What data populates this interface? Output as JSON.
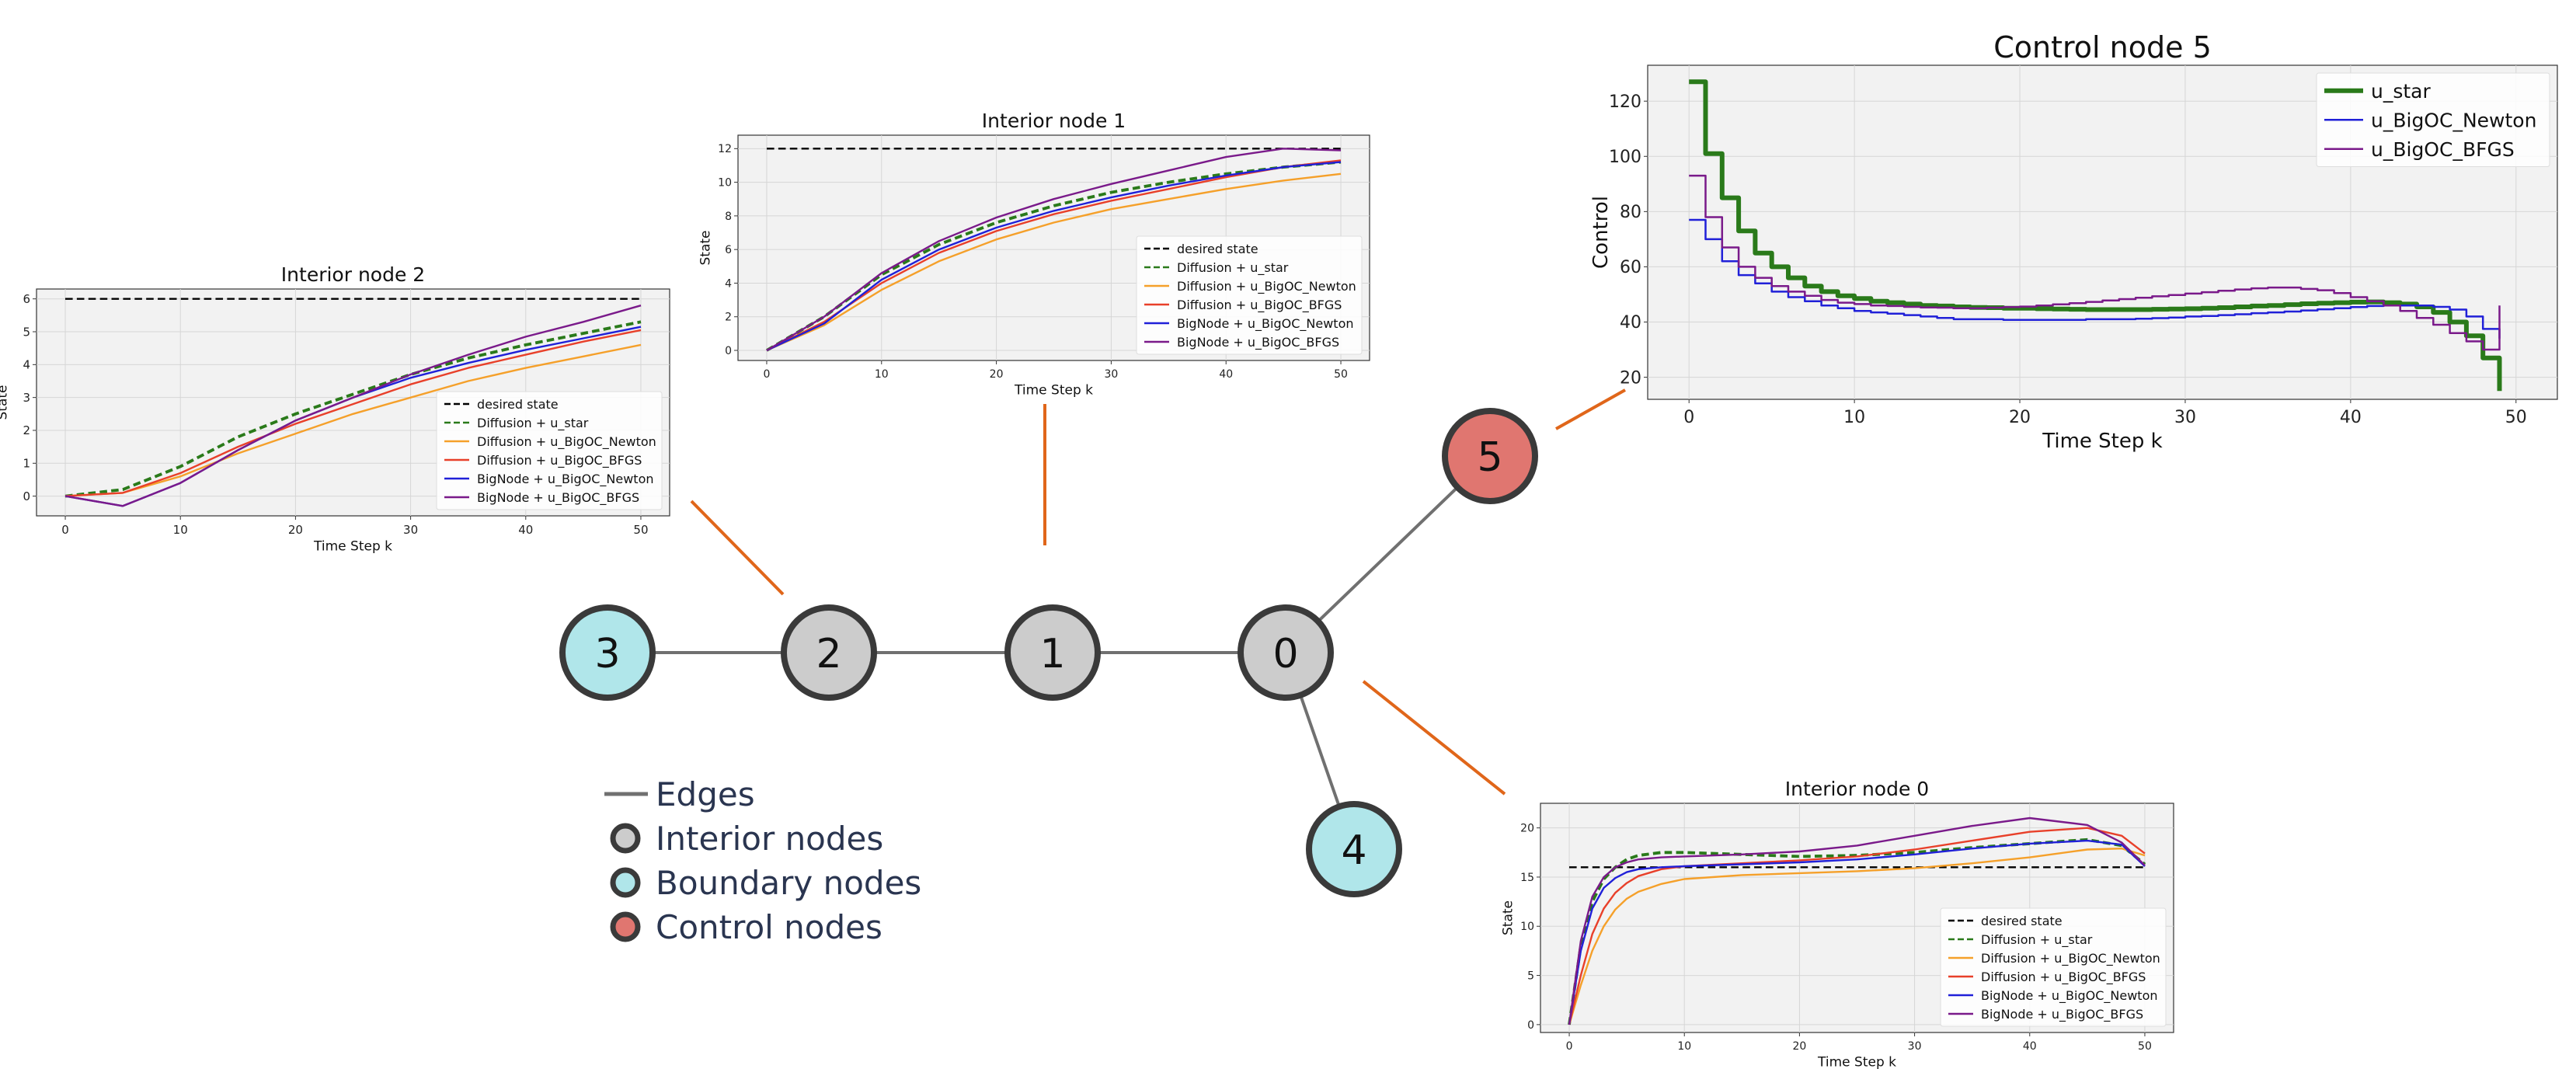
{
  "graph": {
    "nodes": [
      {
        "id": "0",
        "label": "0",
        "kind": "interior"
      },
      {
        "id": "1",
        "label": "1",
        "kind": "interior"
      },
      {
        "id": "2",
        "label": "2",
        "kind": "interior"
      },
      {
        "id": "3",
        "label": "3",
        "kind": "boundary"
      },
      {
        "id": "4",
        "label": "4",
        "kind": "boundary"
      },
      {
        "id": "5",
        "label": "5",
        "kind": "control"
      }
    ],
    "edges": [
      [
        "3",
        "2"
      ],
      [
        "2",
        "1"
      ],
      [
        "1",
        "0"
      ],
      [
        "0",
        "5"
      ],
      [
        "0",
        "4"
      ]
    ],
    "colors": {
      "interior": "#cccccc",
      "boundary": "#b0e6ea",
      "control": "#e07670",
      "node_border": "#3a3a3a",
      "edge": "#707070",
      "connector": "#e0661a"
    },
    "legend": [
      {
        "kind": "edge",
        "label": "Edges"
      },
      {
        "kind": "interior",
        "label": "Interior nodes"
      },
      {
        "kind": "boundary",
        "label": "Boundary nodes"
      },
      {
        "kind": "control",
        "label": "Control nodes"
      }
    ]
  },
  "chart_data": [
    {
      "id": "interior-node-2",
      "node": "2",
      "type": "line",
      "title": "Interior node 2",
      "xlabel": "Time Step k",
      "ylabel": "State",
      "xlim": [
        -2.5,
        52.5
      ],
      "ylim": [
        -0.6,
        6.3
      ],
      "xticks": [
        0,
        10,
        20,
        30,
        40,
        50
      ],
      "yticks": [
        0,
        1,
        2,
        3,
        4,
        5,
        6
      ],
      "grid": true,
      "legend_position": "lower-right",
      "series": [
        {
          "name": "desired state",
          "color": "#000000",
          "dash": "dashed",
          "x": [
            0,
            50
          ],
          "y": [
            6,
            6
          ]
        },
        {
          "name": "Diffusion + u_star",
          "color": "#2a7a1a",
          "dash": "dashed",
          "x": [
            0,
            5,
            10,
            15,
            20,
            25,
            30,
            35,
            40,
            45,
            50
          ],
          "y": [
            0,
            0.2,
            0.9,
            1.8,
            2.5,
            3.1,
            3.7,
            4.2,
            4.6,
            4.95,
            5.3
          ]
        },
        {
          "name": "Diffusion + u_BigOC_Newton",
          "color": "#f5a02a",
          "dash": "solid",
          "x": [
            0,
            5,
            10,
            15,
            20,
            25,
            30,
            35,
            40,
            45,
            50
          ],
          "y": [
            0,
            0.1,
            0.6,
            1.3,
            1.9,
            2.5,
            3.0,
            3.5,
            3.9,
            4.25,
            4.6
          ]
        },
        {
          "name": "Diffusion + u_BigOC_BFGS",
          "color": "#e8402a",
          "dash": "solid",
          "x": [
            0,
            5,
            10,
            15,
            20,
            25,
            30,
            35,
            40,
            45,
            50
          ],
          "y": [
            0,
            0.1,
            0.7,
            1.5,
            2.2,
            2.8,
            3.4,
            3.9,
            4.3,
            4.7,
            5.05
          ]
        },
        {
          "name": "BigNode + u_BigOC_Newton",
          "color": "#2020d8",
          "dash": "solid",
          "x": [
            0,
            5,
            10,
            15,
            20,
            25,
            30,
            35,
            40,
            45,
            50
          ],
          "y": [
            0,
            -0.3,
            0.4,
            1.4,
            2.3,
            3.0,
            3.6,
            4.05,
            4.45,
            4.8,
            5.15
          ]
        },
        {
          "name": "BigNode + u_BigOC_BFGS",
          "color": "#7a1a8a",
          "dash": "solid",
          "x": [
            0,
            5,
            10,
            15,
            20,
            25,
            30,
            35,
            40,
            45,
            50
          ],
          "y": [
            0,
            -0.3,
            0.4,
            1.4,
            2.3,
            3.0,
            3.7,
            4.3,
            4.85,
            5.3,
            5.8
          ]
        }
      ]
    },
    {
      "id": "interior-node-1",
      "node": "1",
      "type": "line",
      "title": "Interior node 1",
      "xlabel": "Time Step k",
      "ylabel": "State",
      "xlim": [
        -2.5,
        52.5
      ],
      "ylim": [
        -0.6,
        12.8
      ],
      "xticks": [
        0,
        10,
        20,
        30,
        40,
        50
      ],
      "yticks": [
        0,
        2,
        4,
        6,
        8,
        10,
        12
      ],
      "grid": true,
      "legend_position": "lower-right",
      "series": [
        {
          "name": "desired state",
          "color": "#000000",
          "dash": "dashed",
          "x": [
            0,
            50
          ],
          "y": [
            12,
            12
          ]
        },
        {
          "name": "Diffusion + u_star",
          "color": "#2a7a1a",
          "dash": "dashed",
          "x": [
            0,
            5,
            10,
            15,
            20,
            25,
            30,
            35,
            40,
            45,
            50
          ],
          "y": [
            0,
            2.0,
            4.5,
            6.3,
            7.6,
            8.6,
            9.4,
            10.0,
            10.5,
            10.9,
            11.2
          ]
        },
        {
          "name": "Diffusion + u_BigOC_Newton",
          "color": "#f5a02a",
          "dash": "solid",
          "x": [
            0,
            5,
            10,
            15,
            20,
            25,
            30,
            35,
            40,
            45,
            50
          ],
          "y": [
            0,
            1.5,
            3.6,
            5.3,
            6.6,
            7.6,
            8.4,
            9.0,
            9.6,
            10.1,
            10.5
          ]
        },
        {
          "name": "Diffusion + u_BigOC_BFGS",
          "color": "#e8402a",
          "dash": "solid",
          "x": [
            0,
            5,
            10,
            15,
            20,
            25,
            30,
            35,
            40,
            45,
            50
          ],
          "y": [
            0,
            1.7,
            4.0,
            5.8,
            7.1,
            8.1,
            8.9,
            9.6,
            10.3,
            10.9,
            11.3
          ]
        },
        {
          "name": "BigNode + u_BigOC_Newton",
          "color": "#2020d8",
          "dash": "solid",
          "x": [
            0,
            5,
            10,
            15,
            20,
            25,
            30,
            35,
            40,
            45,
            50
          ],
          "y": [
            0,
            1.6,
            4.2,
            6.0,
            7.3,
            8.3,
            9.1,
            9.8,
            10.4,
            10.9,
            11.2
          ]
        },
        {
          "name": "BigNode + u_BigOC_BFGS",
          "color": "#7a1a8a",
          "dash": "solid",
          "x": [
            0,
            5,
            10,
            15,
            20,
            25,
            30,
            35,
            40,
            45,
            50
          ],
          "y": [
            0,
            2.0,
            4.6,
            6.5,
            7.9,
            9.0,
            9.9,
            10.7,
            11.5,
            12.0,
            11.9
          ]
        }
      ]
    },
    {
      "id": "control-node-5",
      "node": "5",
      "type": "line",
      "step": true,
      "title": "Control node 5",
      "xlabel": "Time Step k",
      "ylabel": "Control",
      "xlim": [
        -2.5,
        52.5
      ],
      "ylim": [
        12,
        133
      ],
      "xticks": [
        0,
        10,
        20,
        30,
        40,
        50
      ],
      "yticks": [
        20,
        40,
        60,
        80,
        100,
        120
      ],
      "grid": true,
      "legend_position": "upper-right",
      "series": [
        {
          "name": "u_star",
          "color": "#2a7a1a",
          "dash": "solid",
          "width": 6,
          "x": [
            0,
            1,
            2,
            3,
            4,
            5,
            6,
            7,
            8,
            9,
            10,
            11,
            12,
            13,
            14,
            15,
            16,
            17,
            18,
            19,
            20,
            21,
            22,
            23,
            24,
            25,
            26,
            27,
            28,
            29,
            30,
            31,
            32,
            33,
            34,
            35,
            36,
            37,
            38,
            39,
            40,
            41,
            42,
            43,
            44,
            45,
            46,
            47,
            48,
            49
          ],
          "y": [
            127,
            101,
            85,
            73,
            65,
            60,
            56,
            53,
            51,
            49.5,
            48.5,
            47.5,
            47,
            46.5,
            46,
            45.8,
            45.5,
            45.3,
            45.2,
            45,
            45,
            44.8,
            44.7,
            44.6,
            44.5,
            44.5,
            44.5,
            44.5,
            44.6,
            44.7,
            44.8,
            45,
            45.2,
            45.5,
            45.8,
            46,
            46.3,
            46.6,
            46.8,
            47,
            47.2,
            47.3,
            47,
            46.5,
            45.5,
            43.5,
            40,
            35,
            27,
            15
          ]
        },
        {
          "name": "u_BigOC_Newton",
          "color": "#2020d8",
          "dash": "solid",
          "width": 2.5,
          "x": [
            0,
            1,
            2,
            3,
            4,
            5,
            6,
            7,
            8,
            9,
            10,
            11,
            12,
            13,
            14,
            15,
            16,
            17,
            18,
            19,
            20,
            21,
            22,
            23,
            24,
            25,
            26,
            27,
            28,
            29,
            30,
            31,
            32,
            33,
            34,
            35,
            36,
            37,
            38,
            39,
            40,
            41,
            42,
            43,
            44,
            45,
            46,
            47,
            48,
            49
          ],
          "y": [
            77,
            70,
            62,
            57,
            54,
            51,
            49,
            47.5,
            46,
            45,
            44,
            43.5,
            43,
            42.5,
            42,
            41.5,
            41,
            41,
            41,
            40.8,
            40.8,
            40.8,
            40.8,
            40.8,
            41,
            41,
            41,
            41.2,
            41.4,
            41.6,
            42,
            42.2,
            42.5,
            42.8,
            43.2,
            43.5,
            43.8,
            44.2,
            44.6,
            45,
            45.4,
            45.8,
            46,
            46,
            46,
            45.5,
            44.5,
            42,
            37.5,
            34
          ]
        },
        {
          "name": "u_BigOC_BFGS",
          "color": "#7a1a8a",
          "dash": "solid",
          "width": 2.5,
          "x": [
            0,
            1,
            2,
            3,
            4,
            5,
            6,
            7,
            8,
            9,
            10,
            11,
            12,
            13,
            14,
            15,
            16,
            17,
            18,
            19,
            20,
            21,
            22,
            23,
            24,
            25,
            26,
            27,
            28,
            29,
            30,
            31,
            32,
            33,
            34,
            35,
            36,
            37,
            38,
            39,
            40,
            41,
            42,
            43,
            44,
            45,
            46,
            47,
            48,
            49
          ],
          "y": [
            93,
            78,
            67,
            60,
            56,
            53,
            51,
            49.5,
            48,
            47,
            46.5,
            46,
            45.8,
            45.5,
            45.3,
            45.2,
            45,
            45,
            45.2,
            45.4,
            45.6,
            46,
            46.4,
            46.8,
            47.3,
            47.8,
            48.3,
            48.8,
            49.3,
            49.8,
            50.3,
            50.8,
            51.3,
            51.8,
            52.2,
            52.5,
            52.5,
            52,
            51.5,
            50.5,
            49,
            47.5,
            46,
            44,
            41.5,
            39,
            36,
            33,
            30,
            46
          ]
        }
      ]
    },
    {
      "id": "interior-node-0",
      "node": "0",
      "type": "line",
      "title": "Interior node 0",
      "xlabel": "Time Step k",
      "ylabel": "State",
      "xlim": [
        -2.5,
        52.5
      ],
      "ylim": [
        -0.8,
        22.5
      ],
      "xticks": [
        0,
        10,
        20,
        30,
        40,
        50
      ],
      "yticks": [
        0,
        5,
        10,
        15,
        20
      ],
      "grid": true,
      "legend_position": "lower-right",
      "series": [
        {
          "name": "desired state",
          "color": "#000000",
          "dash": "dashed",
          "x": [
            0,
            50
          ],
          "y": [
            16,
            16
          ]
        },
        {
          "name": "Diffusion + u_star",
          "color": "#2a7a1a",
          "dash": "dashed",
          "x": [
            0,
            1,
            2,
            3,
            4,
            5,
            6,
            8,
            10,
            15,
            20,
            25,
            30,
            35,
            40,
            45,
            48,
            50
          ],
          "y": [
            0,
            8,
            12.5,
            14.8,
            16,
            16.8,
            17.2,
            17.5,
            17.5,
            17.3,
            17.1,
            17.2,
            17.5,
            18,
            18.4,
            18.8,
            18.2,
            16.3
          ]
        },
        {
          "name": "Diffusion + u_BigOC_Newton",
          "color": "#f5a02a",
          "dash": "solid",
          "x": [
            0,
            1,
            2,
            3,
            4,
            5,
            6,
            8,
            10,
            15,
            20,
            25,
            30,
            35,
            40,
            45,
            48,
            50
          ],
          "y": [
            0,
            4,
            7.5,
            10,
            11.7,
            12.8,
            13.5,
            14.3,
            14.8,
            15.2,
            15.4,
            15.6,
            15.9,
            16.4,
            17,
            17.8,
            17.9,
            17.2
          ]
        },
        {
          "name": "Diffusion + u_BigOC_BFGS",
          "color": "#e8402a",
          "dash": "solid",
          "x": [
            0,
            1,
            2,
            3,
            4,
            5,
            6,
            8,
            10,
            15,
            20,
            25,
            30,
            35,
            40,
            45,
            48,
            50
          ],
          "y": [
            0,
            5,
            9.2,
            11.8,
            13.4,
            14.4,
            15.1,
            15.8,
            16.1,
            16.4,
            16.7,
            17.1,
            17.8,
            18.7,
            19.6,
            20,
            19.2,
            17.4
          ]
        },
        {
          "name": "BigNode + u_BigOC_Newton",
          "color": "#2020d8",
          "dash": "solid",
          "x": [
            0,
            1,
            2,
            3,
            4,
            5,
            6,
            8,
            10,
            15,
            20,
            25,
            30,
            35,
            40,
            45,
            48,
            50
          ],
          "y": [
            0,
            7.5,
            11.8,
            13.9,
            14.9,
            15.5,
            15.8,
            16,
            16.1,
            16.3,
            16.5,
            16.8,
            17.3,
            17.9,
            18.4,
            18.7,
            18.3,
            16.1
          ]
        },
        {
          "name": "BigNode + u_BigOC_BFGS",
          "color": "#7a1a8a",
          "dash": "solid",
          "x": [
            0,
            1,
            2,
            3,
            4,
            5,
            6,
            8,
            10,
            15,
            20,
            25,
            30,
            35,
            40,
            45,
            48,
            50
          ],
          "y": [
            0,
            8.5,
            13,
            15,
            16,
            16.5,
            16.8,
            17,
            17.1,
            17.3,
            17.6,
            18.2,
            19.2,
            20.2,
            21,
            20.3,
            18.5,
            16.2
          ]
        }
      ]
    }
  ]
}
